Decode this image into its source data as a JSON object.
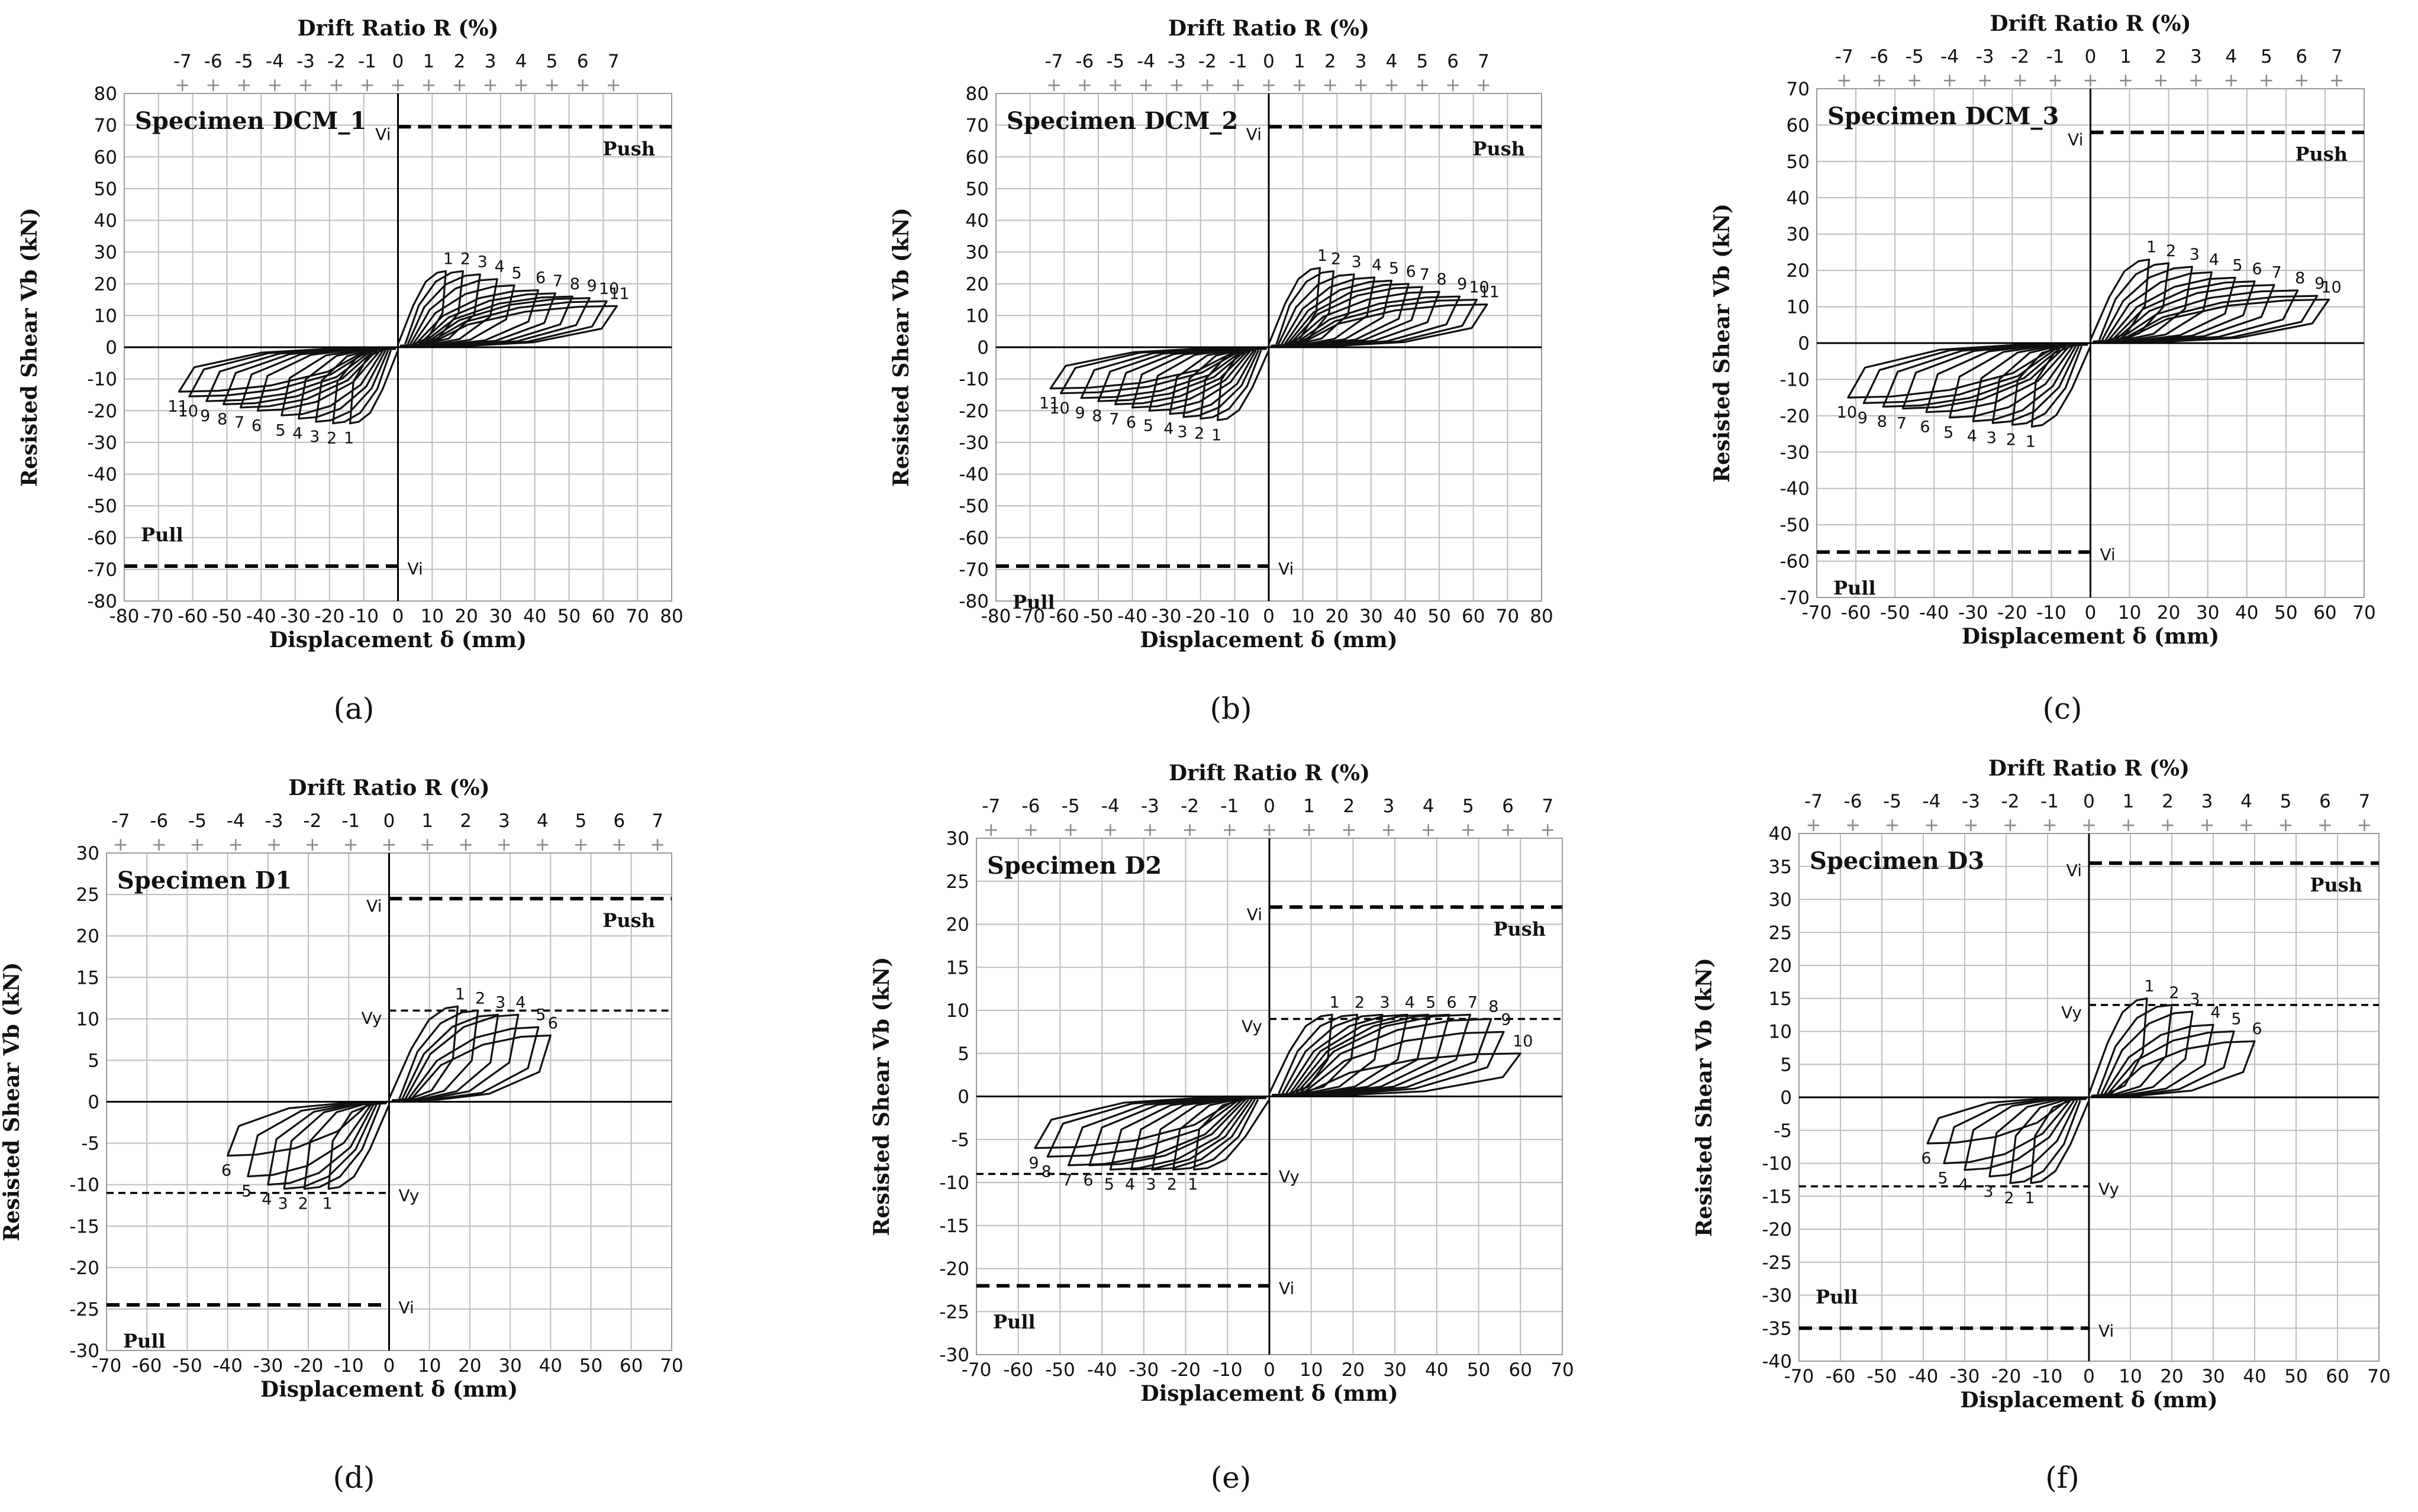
{
  "chart_data": [
    {
      "type": "line",
      "id": "a",
      "caption": "(a)",
      "title": "Specimen DCM_1",
      "xlabel": "Displacement δ (mm)",
      "ylabel": "Resisted Shear Vb (kN)",
      "x2label": "Drift Ratio R (%)",
      "xlim": [
        -80,
        80
      ],
      "xstep": 10,
      "ylim": [
        -80,
        80
      ],
      "ystep": 10,
      "drift_ticks": [
        -7,
        -6,
        -5,
        -4,
        -3,
        -2,
        -1,
        0,
        1,
        2,
        3,
        4,
        5,
        6,
        7
      ],
      "drift_mm_per_pct": 9,
      "x_ticks_text": [
        "-80",
        "-70",
        "-60",
        "-50",
        "-40",
        "-30",
        "-20",
        "-10",
        "0",
        "10",
        "20",
        "30",
        "40",
        "50",
        "60",
        "70",
        "80"
      ],
      "y_ticks_text": [
        "80",
        "70",
        "60",
        "50",
        "40",
        "30",
        "20",
        "10",
        "0",
        "-10",
        "-20",
        "-30",
        "-40",
        "-50",
        "-60",
        "-70",
        "-80"
      ],
      "drift_ticks_text": [
        "-7",
        "-6",
        "-5",
        "-4",
        "-3",
        "-2",
        "-1",
        "0",
        "1",
        "2",
        "3",
        "4",
        "5",
        "6",
        "7"
      ],
      "push_label": "Push",
      "push_pos": "top-right",
      "pull_label": "Pull",
      "pull_pos": "bottom-left",
      "ref_lines": [
        {
          "label": "Vi",
          "value": 69.5,
          "side": "positive",
          "style": "thick"
        },
        {
          "label": "Vi",
          "value": -69,
          "side": "negative",
          "style": "thick"
        }
      ],
      "peaks_pos": [
        [
          14,
          24
        ],
        [
          19,
          24
        ],
        [
          24,
          23
        ],
        [
          29,
          21.5
        ],
        [
          34,
          19.5
        ],
        [
          41,
          18
        ],
        [
          46,
          17
        ],
        [
          51,
          16
        ],
        [
          56,
          15.5
        ],
        [
          61,
          14.5
        ],
        [
          64,
          13
        ]
      ],
      "peaks_neg": [
        [
          -14,
          -24
        ],
        [
          -19,
          -24
        ],
        [
          -24,
          -23.5
        ],
        [
          -29,
          -22.5
        ],
        [
          -34,
          -21.5
        ],
        [
          -41,
          -20
        ],
        [
          -46,
          -19
        ],
        [
          -51,
          -18
        ],
        [
          -56,
          -17
        ],
        [
          -61,
          -15.5
        ],
        [
          -64,
          -14
        ]
      ],
      "cycle_labels_pos": [
        "1",
        "2",
        "3",
        "4",
        "5",
        "6",
        "7",
        "8",
        "9",
        "10",
        "11"
      ],
      "cycle_labels_neg": [
        "1",
        "2",
        "3",
        "4",
        "5",
        "6",
        "7",
        "8",
        "9",
        "10",
        "11"
      ]
    },
    {
      "type": "line",
      "id": "b",
      "caption": "(b)",
      "title": "Specimen DCM_2",
      "xlabel": "Displacement δ (mm)",
      "ylabel": "Resisted Shear Vb (kN)",
      "x2label": "Drift Ratio R (%)",
      "xlim": [
        -80,
        80
      ],
      "xstep": 10,
      "ylim": [
        -80,
        80
      ],
      "ystep": 10,
      "drift_ticks": [
        -7,
        -6,
        -5,
        -4,
        -3,
        -2,
        -1,
        0,
        1,
        2,
        3,
        4,
        5,
        6,
        7
      ],
      "drift_mm_per_pct": 9,
      "x_ticks_text": [
        "-80",
        "-70",
        "-60",
        "-50",
        "-40",
        "-30",
        "-20",
        "-10",
        "0",
        "10",
        "20",
        "30",
        "40",
        "50",
        "60",
        "70",
        "80"
      ],
      "y_ticks_text": [
        "80",
        "70",
        "60",
        "50",
        "40",
        "30",
        "20",
        "10",
        "0",
        "-10",
        "-20",
        "-30",
        "-40",
        "-50",
        "-60",
        "-70",
        "-80"
      ],
      "drift_ticks_text": [
        "-7",
        "-6",
        "-5",
        "-4",
        "-3",
        "-2",
        "-1",
        "0",
        "1",
        "2",
        "3",
        "4",
        "5",
        "6",
        "7"
      ],
      "push_label": "Push",
      "push_pos": "top-right",
      "pull_label": "Pull",
      "pull_pos": "bottom-left",
      "ref_lines": [
        {
          "label": "Vi",
          "value": 69.5,
          "side": "positive",
          "style": "thick"
        },
        {
          "label": "Vi",
          "value": -69,
          "side": "negative",
          "style": "thick"
        }
      ],
      "peaks_pos": [
        [
          15,
          25
        ],
        [
          19,
          24
        ],
        [
          25,
          23
        ],
        [
          31,
          22
        ],
        [
          36,
          21
        ],
        [
          41,
          20
        ],
        [
          45,
          19
        ],
        [
          50,
          17.5
        ],
        [
          56,
          16
        ],
        [
          61,
          15
        ],
        [
          64,
          13.5
        ]
      ],
      "peaks_neg": [
        [
          -15,
          -23
        ],
        [
          -20,
          -22.5
        ],
        [
          -25,
          -22
        ],
        [
          -29,
          -21
        ],
        [
          -35,
          -20
        ],
        [
          -40,
          -19
        ],
        [
          -45,
          -18
        ],
        [
          -50,
          -17
        ],
        [
          -55,
          -16
        ],
        [
          -61,
          -14.5
        ],
        [
          -64,
          -13
        ]
      ],
      "cycle_labels_pos": [
        "1",
        "2",
        "3",
        "4",
        "5",
        "6",
        "7",
        "8",
        "9",
        "10",
        "11"
      ],
      "cycle_labels_neg": [
        "1",
        "2",
        "3",
        "4",
        "5",
        "6",
        "7",
        "8",
        "9",
        "10",
        "11"
      ]
    },
    {
      "type": "line",
      "id": "c",
      "caption": "(c)",
      "title": "Specimen DCM_3",
      "xlabel": "Displacement δ (mm)",
      "ylabel": "Resisted Shear Vb (kN)",
      "x2label": "Drift Ratio R (%)",
      "xlim": [
        -70,
        70
      ],
      "xstep": 10,
      "ylim": [
        -70,
        70
      ],
      "ystep": 10,
      "drift_ticks": [
        -7,
        -6,
        -5,
        -4,
        -3,
        -2,
        -1,
        0,
        1,
        2,
        3,
        4,
        5,
        6,
        7
      ],
      "drift_mm_per_pct": 9,
      "x_ticks_text": [
        "-70",
        "-60",
        "-50",
        "-40",
        "-30",
        "-20",
        "-10",
        "0",
        "10",
        "20",
        "30",
        "40",
        "50",
        "60",
        "70"
      ],
      "y_ticks_text": [
        "70",
        "60",
        "50",
        "40",
        "30",
        "20",
        "10",
        "0",
        "-10",
        "-20",
        "-30",
        "-40",
        "-50",
        "-60",
        "-70"
      ],
      "drift_ticks_text": [
        "-7",
        "-6",
        "-5",
        "-4",
        "-3",
        "-2",
        "-1",
        "0",
        "1",
        "2",
        "3",
        "4",
        "5",
        "6",
        "7"
      ],
      "push_label": "Push",
      "push_pos": "top-right",
      "pull_label": "Pull",
      "pull_pos": "bottom-left",
      "ref_lines": [
        {
          "label": "Vi",
          "value": 58,
          "side": "positive",
          "style": "thick"
        },
        {
          "label": "Vi",
          "value": -57.5,
          "side": "negative",
          "style": "thick"
        }
      ],
      "peaks_pos": [
        [
          15,
          23
        ],
        [
          20,
          22
        ],
        [
          26,
          21
        ],
        [
          31,
          19.5
        ],
        [
          37,
          18
        ],
        [
          42,
          17
        ],
        [
          47,
          16
        ],
        [
          53,
          14.5
        ],
        [
          58,
          13
        ],
        [
          61,
          12
        ]
      ],
      "peaks_neg": [
        [
          -15,
          -23
        ],
        [
          -20,
          -22.5
        ],
        [
          -25,
          -22
        ],
        [
          -30,
          -21.5
        ],
        [
          -36,
          -20.5
        ],
        [
          -42,
          -19
        ],
        [
          -48,
          -18
        ],
        [
          -53,
          -17.5
        ],
        [
          -58,
          -16.5
        ],
        [
          -62,
          -15
        ]
      ],
      "cycle_labels_pos": [
        "1",
        "2",
        "3",
        "4",
        "5",
        "6",
        "7",
        "8",
        "9",
        "10"
      ],
      "cycle_labels_neg": [
        "1",
        "2",
        "3",
        "4",
        "5",
        "6",
        "7",
        "8",
        "9",
        "10"
      ]
    },
    {
      "type": "line",
      "id": "d",
      "caption": "(d)",
      "title": "Specimen D1",
      "xlabel": "Displacement δ (mm)",
      "ylabel": "Resisted Shear Vb (kN)",
      "x2label": "Drift Ratio R (%)",
      "xlim": [
        -70,
        70
      ],
      "xstep": 10,
      "ylim": [
        -30,
        30
      ],
      "ystep": 5,
      "drift_ticks": [
        -7,
        -6,
        -5,
        -4,
        -3,
        -2,
        -1,
        0,
        1,
        2,
        3,
        4,
        5,
        6,
        7
      ],
      "drift_mm_per_pct": 9.5,
      "x_ticks_text": [
        "-70",
        "-60",
        "-50",
        "-40",
        "-30",
        "-20",
        "-10",
        "0",
        "10",
        "20",
        "30",
        "40",
        "50",
        "60",
        "70"
      ],
      "y_ticks_text": [
        "30",
        "25",
        "20",
        "15",
        "10",
        "5",
        "0",
        "-5",
        "-10",
        "-15",
        "-20",
        "-25",
        "-30"
      ],
      "drift_ticks_text": [
        "-7",
        "-6",
        "-5",
        "-4",
        "-3",
        "-2",
        "-1",
        "0",
        "1",
        "2",
        "3",
        "4",
        "5",
        "6",
        "7"
      ],
      "push_label": "Push",
      "push_pos": "top-right",
      "pull_label": "Pull",
      "pull_pos": "bottom-left",
      "ref_lines": [
        {
          "label": "Vi",
          "value": 24.5,
          "side": "positive",
          "style": "thick"
        },
        {
          "label": "Vy",
          "value": 11,
          "side": "positive",
          "style": "thin"
        },
        {
          "label": "Vy",
          "value": -11,
          "side": "negative",
          "style": "thin"
        },
        {
          "label": "Vi",
          "value": -24.5,
          "side": "negative",
          "style": "thick"
        }
      ],
      "peaks_pos": [
        [
          17,
          11.5
        ],
        [
          22,
          11
        ],
        [
          27,
          10.5
        ],
        [
          32,
          10.5
        ],
        [
          37,
          9
        ],
        [
          40,
          8
        ]
      ],
      "peaks_neg": [
        [
          -15,
          -10.5
        ],
        [
          -21,
          -10.5
        ],
        [
          -26,
          -10.5
        ],
        [
          -30,
          -10
        ],
        [
          -35,
          -9
        ],
        [
          -40,
          -6.5
        ]
      ],
      "cycle_labels_pos": [
        "1",
        "2",
        "3",
        "4",
        "5",
        "6"
      ],
      "cycle_labels_neg": [
        "1",
        "2",
        "3",
        "4",
        "5",
        "6"
      ]
    },
    {
      "type": "line",
      "id": "e",
      "caption": "(e)",
      "title": "Specimen D2",
      "xlabel": "Displacement δ (mm)",
      "ylabel": "Resisted  Shear Vb (kN)",
      "x2label": "Drift Ratio R (%)",
      "xlim": [
        -70,
        70
      ],
      "xstep": 10,
      "ylim": [
        -30,
        30
      ],
      "ystep": 5,
      "drift_ticks": [
        -7,
        -6,
        -5,
        -4,
        -3,
        -2,
        -1,
        0,
        1,
        2,
        3,
        4,
        5,
        6,
        7
      ],
      "drift_mm_per_pct": 9.5,
      "x_ticks_text": [
        "-70",
        "-60",
        "-50",
        "-40",
        "-30",
        "-20",
        "-10",
        "0",
        "10",
        "20",
        "30",
        "40",
        "50",
        "60",
        "70"
      ],
      "y_ticks_text": [
        "30",
        "25",
        "20",
        "15",
        "10",
        "5",
        "0",
        "-5",
        "-10",
        "-15",
        "-20",
        "-25",
        "-30"
      ],
      "drift_ticks_text": [
        "-7",
        "-6",
        "-5",
        "-4",
        "-3",
        "-2",
        "-1",
        "0",
        "1",
        "2",
        "3",
        "4",
        "5",
        "6",
        "7"
      ],
      "push_label": "Push",
      "push_pos": "top-right",
      "pull_label": "Pull",
      "pull_pos": "bottom-left",
      "ref_lines": [
        {
          "label": "Vi",
          "value": 22,
          "side": "positive",
          "style": "thick"
        },
        {
          "label": "Vy",
          "value": 9,
          "side": "positive",
          "style": "thin"
        },
        {
          "label": "Vy",
          "value": -9,
          "side": "negative",
          "style": "thin"
        },
        {
          "label": "Vi",
          "value": -22,
          "side": "negative",
          "style": "thick"
        }
      ],
      "peaks_pos": [
        [
          15,
          9.5
        ],
        [
          21,
          9.5
        ],
        [
          27,
          9.5
        ],
        [
          33,
          9.5
        ],
        [
          38,
          9.5
        ],
        [
          43,
          9.5
        ],
        [
          48,
          9.5
        ],
        [
          53,
          9
        ],
        [
          56,
          7.5
        ],
        [
          60,
          5
        ]
      ],
      "peaks_neg": [
        [
          -18,
          -8.5
        ],
        [
          -23,
          -8.5
        ],
        [
          -28,
          -8.5
        ],
        [
          -33,
          -8.5
        ],
        [
          -38,
          -8.5
        ],
        [
          -43,
          -8
        ],
        [
          -48,
          -8
        ],
        [
          -53,
          -7
        ],
        [
          -56,
          -6
        ]
      ],
      "cycle_labels_pos": [
        "1",
        "2",
        "3",
        "4",
        "5",
        "6",
        "7",
        "8",
        "9",
        "10"
      ],
      "cycle_labels_neg": [
        "1",
        "2",
        "3",
        "4",
        "5",
        "6",
        "7",
        "8",
        "9"
      ]
    },
    {
      "type": "line",
      "id": "f",
      "caption": "(f)",
      "title": "Specimen D3",
      "xlabel": "Displacement δ (mm)",
      "ylabel": "Resisted Shear Vb (kN)",
      "x2label": "Drift Ratio R (%)",
      "xlim": [
        -70,
        70
      ],
      "xstep": 10,
      "ylim": [
        -40,
        40
      ],
      "ystep": 5,
      "drift_ticks": [
        -7,
        -6,
        -5,
        -4,
        -3,
        -2,
        -1,
        0,
        1,
        2,
        3,
        4,
        5,
        6,
        7
      ],
      "drift_mm_per_pct": 9.5,
      "x_ticks_text": [
        "-70",
        "-60",
        "-50",
        "-40",
        "-30",
        "-20",
        "-10",
        "0",
        "10",
        "20",
        "30",
        "40",
        "50",
        "60",
        "70"
      ],
      "y_ticks_text": [
        "40",
        "35",
        "30",
        "25",
        "20",
        "15",
        "10",
        "5",
        "0",
        "-5",
        "-10",
        "-15",
        "-20",
        "-25",
        "-30",
        "-35",
        "-40"
      ],
      "drift_ticks_text": [
        "-7",
        "-6",
        "-5",
        "-4",
        "-3",
        "-2",
        "-1",
        "0",
        "1",
        "2",
        "3",
        "4",
        "5",
        "6",
        "7"
      ],
      "push_label": "Push",
      "push_pos": "top-right",
      "pull_label": "Pull",
      "pull_pos": "bottom-left",
      "ref_lines": [
        {
          "label": "Vi",
          "value": 35.5,
          "side": "positive",
          "style": "thick"
        },
        {
          "label": "Vy",
          "value": 14,
          "side": "positive",
          "style": "thin"
        },
        {
          "label": "Vy",
          "value": -13.5,
          "side": "negative",
          "style": "thin"
        },
        {
          "label": "Vi",
          "value": -35,
          "side": "negative",
          "style": "thick"
        }
      ],
      "peaks_pos": [
        [
          14,
          15
        ],
        [
          20,
          14
        ],
        [
          25,
          13
        ],
        [
          30,
          11
        ],
        [
          35,
          10
        ],
        [
          40,
          8.5
        ]
      ],
      "peaks_neg": [
        [
          -14,
          -13
        ],
        [
          -19,
          -13
        ],
        [
          -24,
          -12
        ],
        [
          -30,
          -11
        ],
        [
          -35,
          -10
        ],
        [
          -39,
          -7
        ]
      ],
      "cycle_labels_pos": [
        "1",
        "2",
        "3",
        "4",
        "5",
        "6"
      ],
      "cycle_labels_neg": [
        "1",
        "2",
        "3",
        "4",
        "5",
        "6"
      ]
    }
  ]
}
